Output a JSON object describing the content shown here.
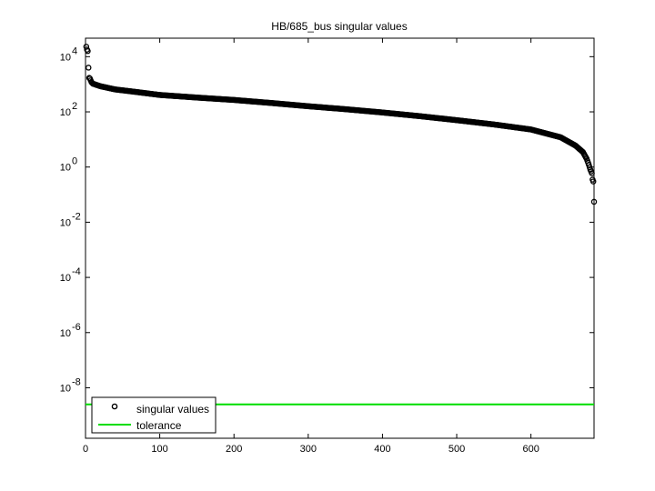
{
  "chart_data": {
    "type": "scatter",
    "title": "HB/685_bus singular values",
    "xlabel": "",
    "ylabel": "",
    "xlim": [
      0,
      685
    ],
    "ylog": true,
    "ylim_exp": [
      -9.83,
      4.67
    ],
    "grid": false,
    "legend_position": "bottom-left",
    "x_ticks": [
      0,
      100,
      200,
      300,
      400,
      500,
      600
    ],
    "y_ticks": [
      {
        "base": "10",
        "exp": "4",
        "value": 10000
      },
      {
        "base": "10",
        "exp": "2",
        "value": 100
      },
      {
        "base": "10",
        "exp": "0",
        "value": 1
      },
      {
        "base": "10",
        "exp": "-2",
        "value": 0.01
      },
      {
        "base": "10",
        "exp": "-4",
        "value": 0.0001
      },
      {
        "base": "10",
        "exp": "-6",
        "value": 1e-06
      },
      {
        "base": "10",
        "exp": "-8",
        "value": 1e-08
      }
    ],
    "series": [
      {
        "name": "singular values",
        "marker": "circle",
        "color": "#000000",
        "profile": [
          [
            1,
            23000
          ],
          [
            2,
            18000
          ],
          [
            3,
            16000
          ],
          [
            4,
            4000
          ],
          [
            5,
            1700
          ],
          [
            6,
            1600
          ],
          [
            8,
            1200
          ],
          [
            10,
            1050
          ],
          [
            20,
            850
          ],
          [
            40,
            650
          ],
          [
            60,
            560
          ],
          [
            80,
            480
          ],
          [
            100,
            410
          ],
          [
            150,
            330
          ],
          [
            200,
            270
          ],
          [
            250,
            210
          ],
          [
            300,
            160
          ],
          [
            350,
            125
          ],
          [
            400,
            95
          ],
          [
            450,
            70
          ],
          [
            500,
            50
          ],
          [
            550,
            35
          ],
          [
            600,
            23
          ],
          [
            640,
            12
          ],
          [
            660,
            6
          ],
          [
            670,
            3.5
          ],
          [
            675,
            2
          ],
          [
            678,
            1.2
          ],
          [
            680,
            0.8
          ],
          [
            682,
            0.6
          ],
          [
            683,
            0.35
          ],
          [
            684,
            0.3
          ],
          [
            685,
            0.055
          ]
        ]
      },
      {
        "name": "tolerance",
        "marker": "line",
        "color": "#00dd00",
        "value": 2.5e-09
      }
    ]
  }
}
